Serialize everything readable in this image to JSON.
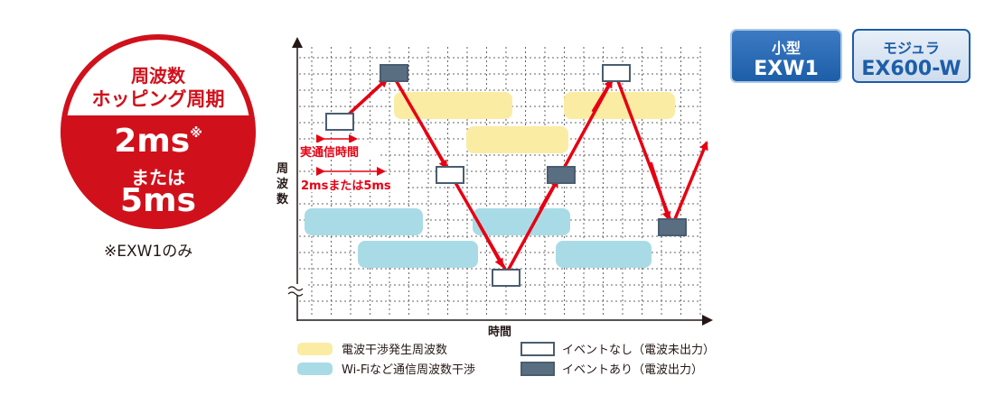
{
  "badge": {
    "line1": "周波数",
    "line2": "ホッピング周期",
    "value1": "2ms",
    "mark": "※",
    "conj": "または",
    "value2": "5ms"
  },
  "note": "※EXW1のみ",
  "models": [
    {
      "line1": "小型",
      "line2": "EXW1"
    },
    {
      "line1": "モジュラ",
      "line2": "EX600-W"
    }
  ],
  "diagram": {
    "ylabel": "周波数",
    "xlabel": "時間",
    "annot_actual": "実通信時間",
    "annot_period": "2msまたは5ms",
    "legend": [
      {
        "label": "電波干渉発生周波数",
        "color": "#fbeca4",
        "kind": "interference"
      },
      {
        "label": "Wi-Fiなど通信周波数干渉",
        "color": "#a9dbe6",
        "kind": "wifi"
      },
      {
        "label": "イベントなし（電波未出力）",
        "color": "#ffffff",
        "kind": "no-event"
      },
      {
        "label": "イベントあり（電波出力）",
        "color": "#5a6e82",
        "kind": "event"
      }
    ],
    "colors": {
      "arrow": "#e60012",
      "annot": "#e60012",
      "box_border": "#4a5d70"
    }
  }
}
